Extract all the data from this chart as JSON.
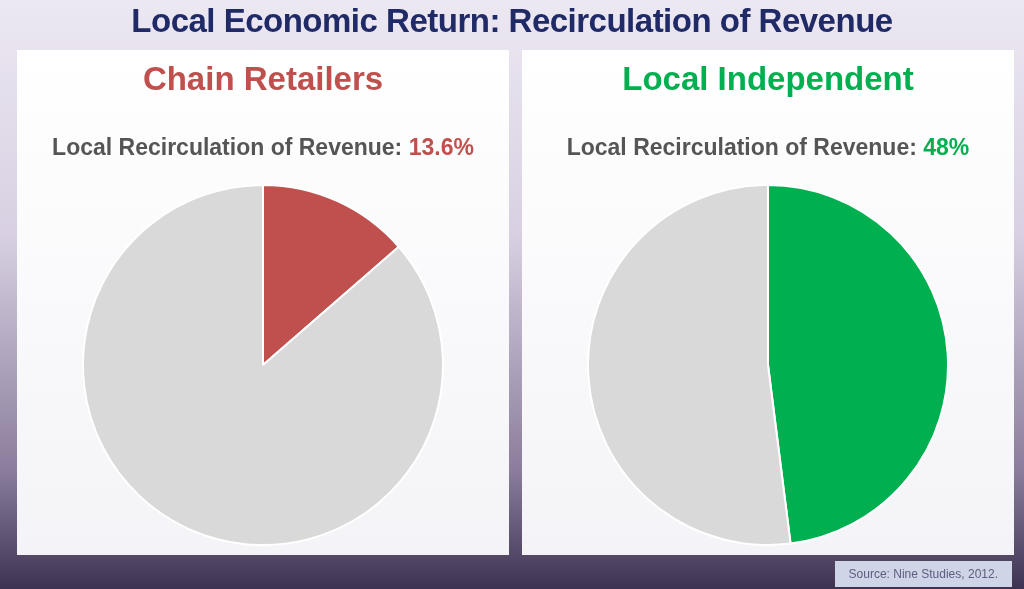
{
  "chart_data": [
    {
      "type": "pie",
      "title": "Chain Retailers",
      "subtitle": "Local Recirculation of Revenue:",
      "categories": [
        null,
        null
      ],
      "values": [
        13.6,
        86.4
      ],
      "colors": [
        "#c0504d",
        "#d9d9d9"
      ],
      "value_labels": [
        "13.6%",
        null
      ],
      "legend": false,
      "annotations": [
        "Local Economic Return: Recirculation of Revenue"
      ]
    },
    {
      "type": "pie",
      "title": "Local Independent",
      "subtitle": "Local Recirculation of Revenue:",
      "categories": [
        null,
        null
      ],
      "values": [
        48,
        52
      ],
      "colors": [
        "#00b050",
        "#d9d9d9"
      ],
      "value_labels": [
        "48%",
        null
      ],
      "legend": false,
      "annotations": [
        "Source: Nine Studies, 2012."
      ]
    }
  ]
}
